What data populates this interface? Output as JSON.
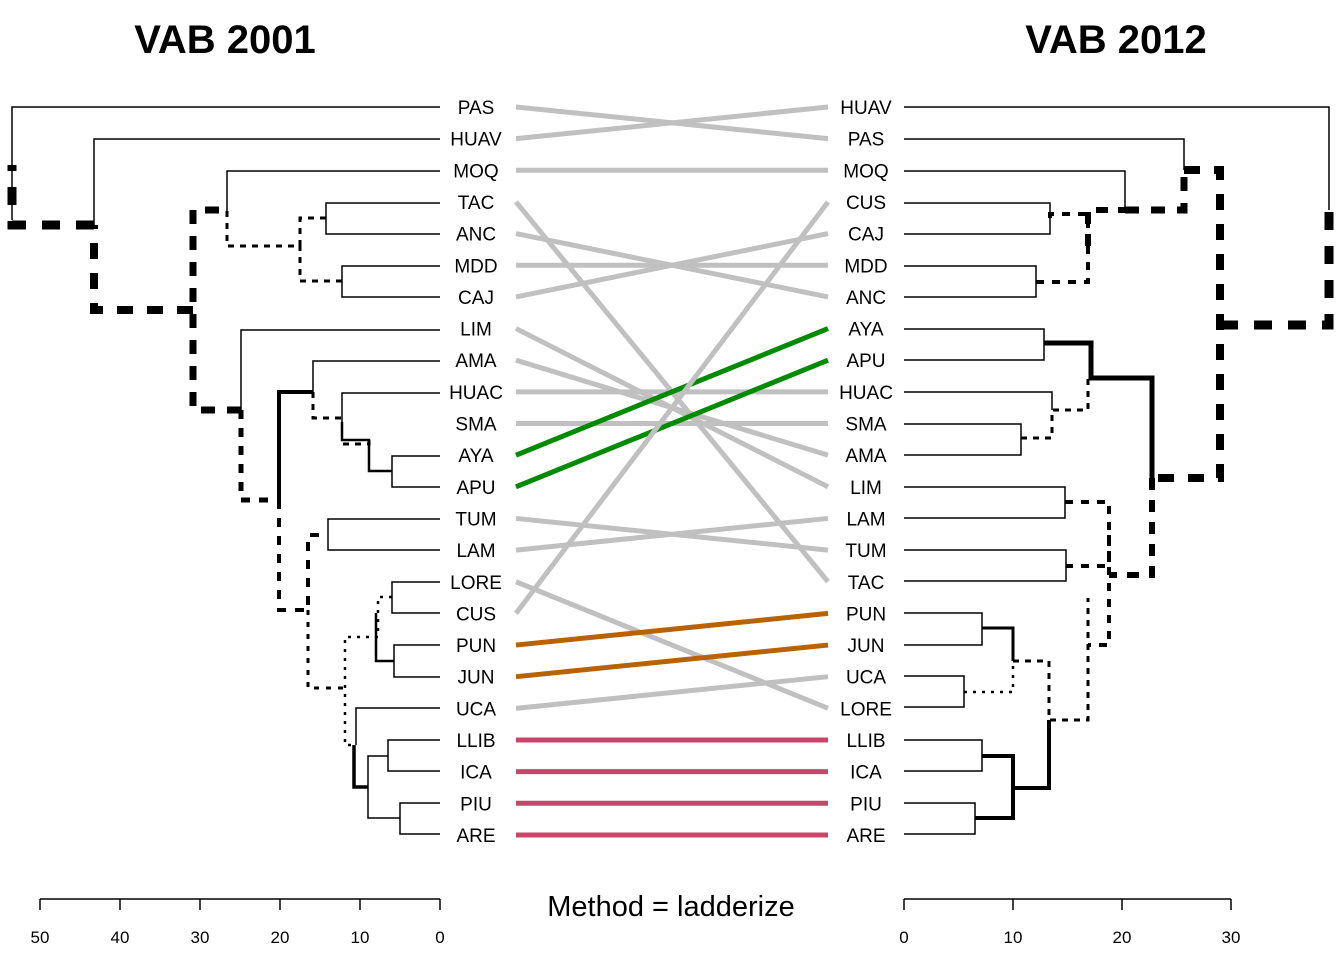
{
  "titles": {
    "left": "VAB 2001",
    "right": "VAB 2012"
  },
  "method_label": "Method = ladderize",
  "left_labels": [
    "PAS",
    "HUAV",
    "MOQ",
    "TAC",
    "ANC",
    "MDD",
    "CAJ",
    "LIM",
    "AMA",
    "HUAC",
    "SMA",
    "AYA",
    "APU",
    "TUM",
    "LAM",
    "LORE",
    "CUS",
    "PUN",
    "JUN",
    "UCA",
    "LLIB",
    "ICA",
    "PIU",
    "ARE"
  ],
  "right_labels": [
    "HUAV",
    "PAS",
    "MOQ",
    "CUS",
    "CAJ",
    "MDD",
    "ANC",
    "AYA",
    "APU",
    "HUAC",
    "SMA",
    "AMA",
    "LIM",
    "LAM",
    "TUM",
    "TAC",
    "PUN",
    "JUN",
    "UCA",
    "LORE",
    "LLIB",
    "ICA",
    "PIU",
    "ARE"
  ],
  "left_axis": {
    "ticks": [
      "50",
      "40",
      "30",
      "20",
      "10",
      "0"
    ],
    "range": [
      50,
      0
    ]
  },
  "right_axis": {
    "ticks": [
      "0",
      "10",
      "20",
      "30"
    ],
    "range": [
      0,
      30
    ]
  },
  "colors": {
    "common": "#c0c0c0",
    "green": "#008b00",
    "orange": "#b86200",
    "pink": "#c9466a",
    "tree": "#000000"
  },
  "connection_groups": [
    {
      "color": "green",
      "labels": [
        "AYA",
        "APU"
      ]
    },
    {
      "color": "orange",
      "labels": [
        "PUN",
        "JUN"
      ]
    },
    {
      "color": "pink",
      "labels": [
        "LLIB",
        "ICA",
        "PIU",
        "ARE"
      ]
    }
  ],
  "left_merges": [
    [
      "PIU",
      "ARE",
      5.0
    ],
    [
      "LLIB",
      "ICA",
      6.5
    ],
    [
      "AYA",
      "APU",
      6.0
    ],
    [
      "PUN",
      "JUN",
      5.8
    ],
    [
      "LORE",
      "CUS",
      6.0
    ],
    [
      "HUAC",
      "SMA",
      12.0
    ],
    [
      "TUM",
      "LAM",
      14.0
    ],
    [
      "TAC",
      "ANC",
      14.0
    ],
    [
      "MDD",
      "CAJ",
      12.0
    ],
    [
      "LIM",
      "AMA",
      25.0
    ],
    [
      "MOQ",
      "TAC",
      27.0
    ],
    [
      "HUAV",
      "MOQ",
      43.0
    ],
    [
      "PAS",
      "HUAV",
      53.0
    ]
  ],
  "right_merges": [
    [
      "PUN",
      "JUN",
      7.2
    ],
    [
      "LLIB",
      "ICA",
      7.2
    ],
    [
      "PIU",
      "ARE",
      6.6
    ],
    [
      "UCA",
      "LORE",
      5.6
    ],
    [
      "AYA",
      "APU",
      13.0
    ],
    [
      "SMA",
      "AMA",
      10.8
    ],
    [
      "LIM",
      "LAM",
      14.8
    ],
    [
      "TUM",
      "TAC",
      14.8
    ],
    [
      "CUS",
      "CAJ",
      13.4
    ],
    [
      "MDD",
      "ANC",
      12.2
    ],
    [
      "MOQ",
      "CUS",
      20.2
    ],
    [
      "PAS",
      "MOQ",
      25.6
    ],
    [
      "HUAV",
      "PAS",
      39.0
    ]
  ]
}
